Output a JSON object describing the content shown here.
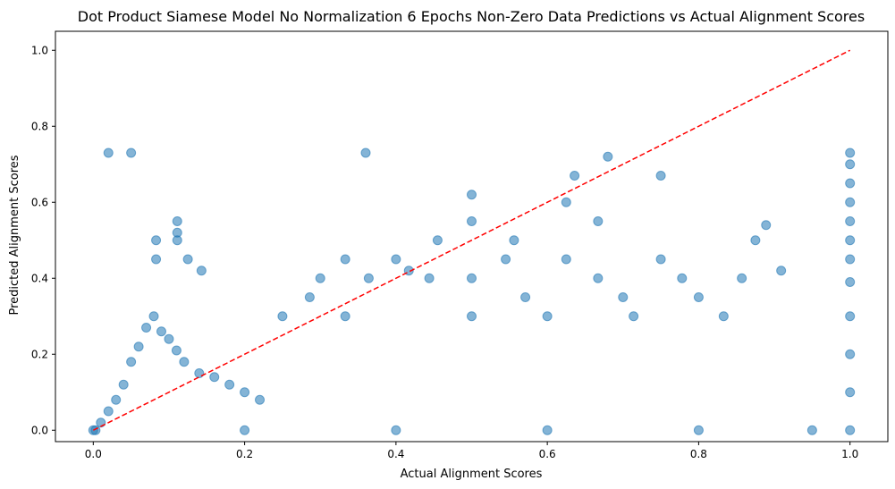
{
  "chart_data": {
    "type": "scatter",
    "title": "Dot Product Siamese Model No Normalization 6 Epochs Non-Zero Data Predictions vs Actual Alignment Scores",
    "xlabel": "Actual Alignment Scores",
    "ylabel": "Predicted Alignment Scores",
    "xlim": [
      -0.05,
      1.05
    ],
    "ylim": [
      -0.03,
      1.05
    ],
    "xticks": [
      0.0,
      0.2,
      0.4,
      0.6,
      0.8,
      1.0
    ],
    "yticks": [
      0.0,
      0.2,
      0.4,
      0.6,
      0.8,
      1.0
    ],
    "xtick_labels": [
      "0.0",
      "0.2",
      "0.4",
      "0.6",
      "0.8",
      "1.0"
    ],
    "ytick_labels": [
      "0.0",
      "0.2",
      "0.4",
      "0.6",
      "0.8",
      "1.0"
    ],
    "grid": false,
    "legend": "none",
    "point_color": "#1f77b4",
    "point_alpha": 0.08,
    "reference_line": {
      "x": [
        0,
        1
      ],
      "y": [
        0,
        1
      ],
      "color": "#ff0000",
      "style": "dashed"
    },
    "series": [
      {
        "values": [
          [
            0.0,
            0.0
          ],
          [
            0.003,
            0.0
          ],
          [
            0.01,
            0.02
          ],
          [
            0.02,
            0.05
          ],
          [
            0.03,
            0.08
          ],
          [
            0.04,
            0.12
          ],
          [
            0.05,
            0.18
          ],
          [
            0.06,
            0.22
          ],
          [
            0.07,
            0.27
          ],
          [
            0.08,
            0.3
          ],
          [
            0.09,
            0.26
          ],
          [
            0.1,
            0.24
          ],
          [
            0.11,
            0.21
          ],
          [
            0.12,
            0.18
          ],
          [
            0.14,
            0.15
          ],
          [
            0.16,
            0.14
          ],
          [
            0.18,
            0.12
          ],
          [
            0.2,
            0.1
          ],
          [
            0.22,
            0.08
          ],
          [
            0.083,
            0.45
          ],
          [
            0.083,
            0.5
          ],
          [
            0.111,
            0.55
          ],
          [
            0.111,
            0.52
          ],
          [
            0.111,
            0.5
          ],
          [
            0.125,
            0.45
          ],
          [
            0.143,
            0.42
          ],
          [
            0.25,
            0.3
          ],
          [
            0.286,
            0.35
          ],
          [
            0.3,
            0.4
          ],
          [
            0.333,
            0.45
          ],
          [
            0.333,
            0.3
          ],
          [
            0.364,
            0.4
          ],
          [
            0.4,
            0.45
          ],
          [
            0.417,
            0.42
          ],
          [
            0.444,
            0.4
          ],
          [
            0.455,
            0.5
          ],
          [
            0.5,
            0.55
          ],
          [
            0.5,
            0.4
          ],
          [
            0.5,
            0.3
          ],
          [
            0.5,
            0.62
          ],
          [
            0.545,
            0.45
          ],
          [
            0.556,
            0.5
          ],
          [
            0.571,
            0.35
          ],
          [
            0.6,
            0.3
          ],
          [
            0.625,
            0.6
          ],
          [
            0.625,
            0.45
          ],
          [
            0.636,
            0.67
          ],
          [
            0.667,
            0.4
          ],
          [
            0.667,
            0.55
          ],
          [
            0.7,
            0.35
          ],
          [
            0.714,
            0.3
          ],
          [
            0.75,
            0.67
          ],
          [
            0.75,
            0.45
          ],
          [
            0.778,
            0.4
          ],
          [
            0.8,
            0.35
          ],
          [
            0.833,
            0.3
          ],
          [
            0.857,
            0.4
          ],
          [
            0.875,
            0.5
          ],
          [
            0.889,
            0.54
          ],
          [
            0.909,
            0.42
          ],
          [
            1.0,
            0.73
          ],
          [
            1.0,
            0.7
          ],
          [
            1.0,
            0.65
          ],
          [
            1.0,
            0.6
          ],
          [
            1.0,
            0.55
          ],
          [
            1.0,
            0.5
          ],
          [
            1.0,
            0.45
          ],
          [
            1.0,
            0.39
          ],
          [
            1.0,
            0.3
          ],
          [
            1.0,
            0.2
          ],
          [
            1.0,
            0.1
          ],
          [
            1.0,
            0.0
          ],
          [
            0.2,
            0.0
          ],
          [
            0.4,
            0.0
          ],
          [
            0.6,
            0.0
          ],
          [
            0.8,
            0.0
          ],
          [
            0.95,
            0.0
          ],
          [
            0.02,
            0.73
          ],
          [
            0.05,
            0.73
          ],
          [
            0.36,
            0.73
          ],
          [
            0.68,
            0.72
          ]
        ]
      }
    ]
  }
}
